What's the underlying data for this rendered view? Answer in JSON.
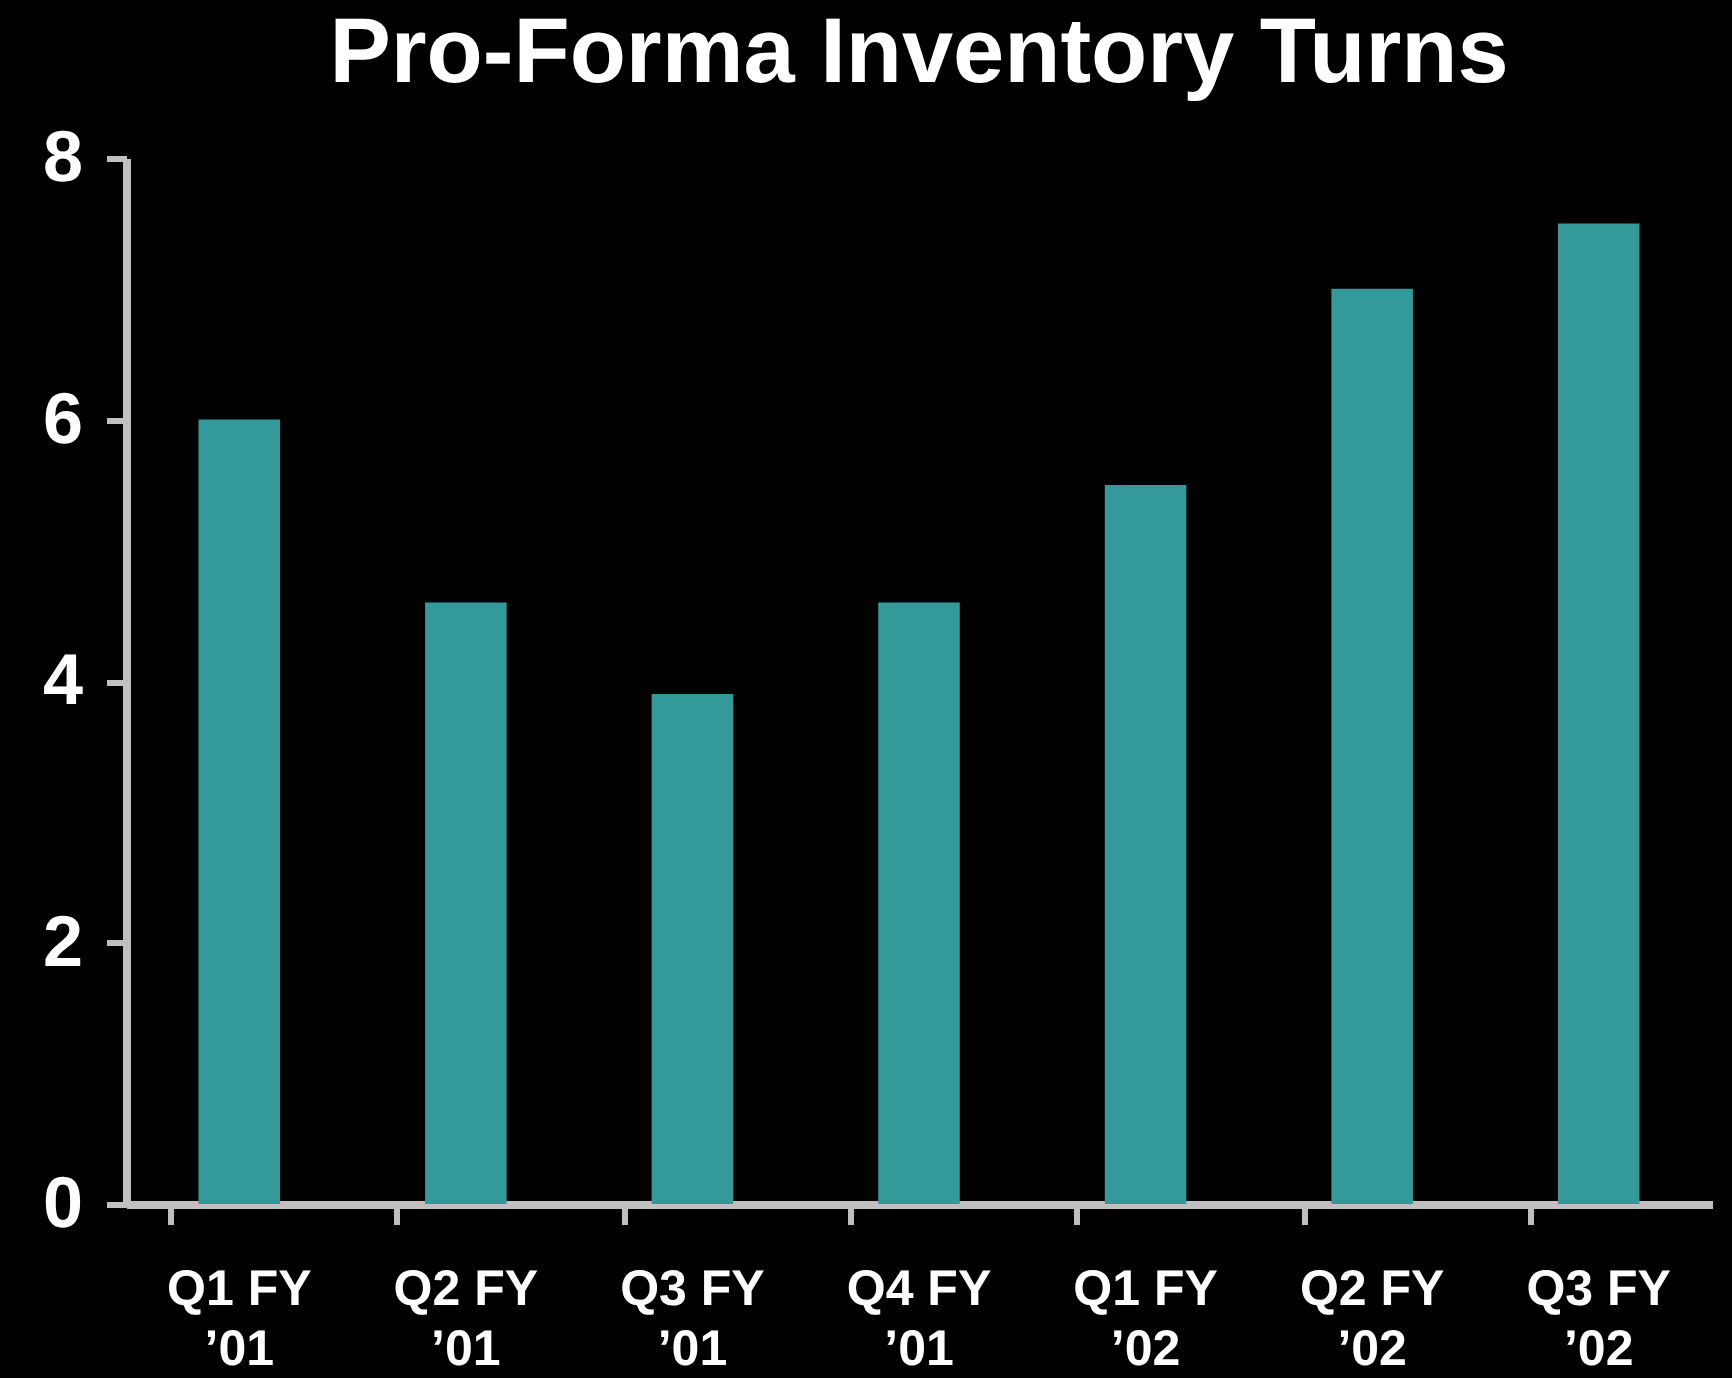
{
  "chart_data": {
    "type": "bar",
    "title": "Pro-Forma Inventory Turns",
    "categories": [
      "Q1 FY ’01",
      "Q2 FY ’01",
      "Q3 FY ’01",
      "Q4 FY ’01",
      "Q1 FY ’02",
      "Q2 FY ’02",
      "Q3 FY ’02"
    ],
    "values": [
      6.0,
      4.6,
      3.9,
      4.6,
      5.5,
      7.0,
      7.5
    ],
    "color": "#339999",
    "ylim": [
      0,
      8
    ],
    "yticks": [
      0,
      2,
      4,
      6,
      8
    ],
    "grid": false
  }
}
